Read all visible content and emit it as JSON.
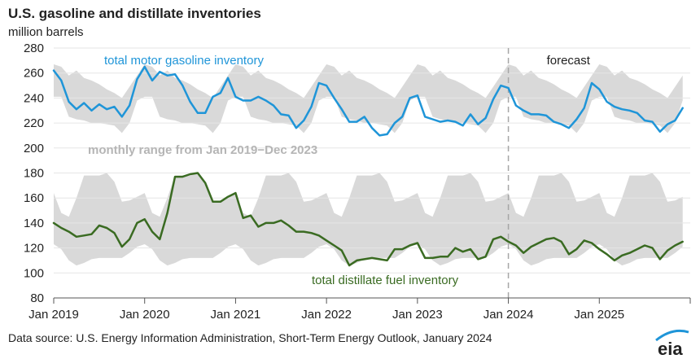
{
  "chart_data": {
    "type": "area",
    "title": "U.S. gasoline and distillate inventories",
    "subtitle": "million barrels",
    "ylim": [
      80,
      280
    ],
    "yticks": [
      80,
      100,
      120,
      140,
      160,
      180,
      200,
      220,
      240,
      260,
      280
    ],
    "xticks": [
      "Jan 2019",
      "Jan 2020",
      "Jan 2021",
      "Jan 2022",
      "Jan 2023",
      "Jan 2024",
      "Jan 2025"
    ],
    "x_start": "Jan 2019",
    "forecast_start": "Jan 2024",
    "forecast_label": "forecast",
    "range_label": "monthly range from Jan 2019−Dec 2023",
    "source": "Data source: U.S. Energy Information Administration, Short-Term Energy Outlook, January 2024",
    "logo_text": "eia",
    "colors": {
      "gasoline": "#1f95d8",
      "distillate": "#3a6b22",
      "range": "#d9d9d9",
      "forecast_line": "#a6a6a6",
      "range_label": "#b5b5b5"
    },
    "series": [
      {
        "name": "total motor gasoline inventory",
        "values": [
          262,
          254,
          237,
          231,
          236,
          230,
          235,
          231,
          233,
          225,
          234,
          255,
          265,
          254,
          261,
          258,
          259,
          250,
          237,
          228,
          228,
          241,
          244,
          256,
          241,
          238,
          238,
          241,
          238,
          234,
          227,
          226,
          216,
          222,
          233,
          252,
          250,
          240,
          231,
          221,
          221,
          225,
          216,
          210,
          211,
          220,
          225,
          240,
          242,
          225,
          223,
          221,
          222,
          221,
          218,
          227,
          219,
          224,
          239,
          250,
          248,
          234,
          230,
          227,
          227,
          226,
          221,
          219,
          216,
          223,
          232,
          252,
          247,
          237,
          233,
          231,
          230,
          228,
          222,
          221,
          213,
          219,
          222,
          232
        ],
        "range_min": [
          241,
          241,
          225,
          223,
          222,
          220,
          220,
          219,
          218,
          212,
          220,
          238,
          241,
          241,
          225,
          223,
          222,
          220,
          220,
          219,
          218,
          212,
          220,
          238
        ],
        "range_max": [
          267,
          265,
          258,
          262,
          256,
          254,
          251,
          247,
          244,
          240,
          249,
          258,
          267,
          265,
          258,
          262,
          256,
          254,
          251,
          247,
          244,
          240,
          249,
          258
        ]
      },
      {
        "name": "total distillate fuel inventory",
        "values": [
          140,
          136,
          133,
          129,
          130,
          131,
          138,
          136,
          132,
          121,
          127,
          140,
          143,
          133,
          127,
          148,
          177,
          177,
          179,
          180,
          172,
          157,
          157,
          161,
          164,
          144,
          146,
          137,
          140,
          140,
          142,
          138,
          133,
          133,
          132,
          130,
          126,
          122,
          118,
          106,
          110,
          111,
          112,
          111,
          110,
          119,
          119,
          122,
          124,
          112,
          112,
          113,
          113,
          120,
          117,
          119,
          111,
          113,
          127,
          129,
          125,
          122,
          116,
          121,
          124,
          127,
          128,
          125,
          115,
          119,
          126,
          124,
          119,
          115,
          110,
          114,
          116,
          119,
          122,
          120,
          111,
          118,
          122,
          125
        ],
        "range_min": [
          123,
          119,
          110,
          106,
          108,
          111,
          112,
          112,
          112,
          112,
          116,
          121,
          123,
          119,
          110,
          106,
          108,
          111,
          112,
          112,
          112,
          112,
          116,
          121
        ],
        "range_max": [
          164,
          148,
          145,
          160,
          178,
          178,
          178,
          180,
          173,
          157,
          158,
          161,
          164,
          148,
          145,
          160,
          178,
          178,
          178,
          180,
          173,
          157,
          158,
          161
        ]
      }
    ]
  }
}
